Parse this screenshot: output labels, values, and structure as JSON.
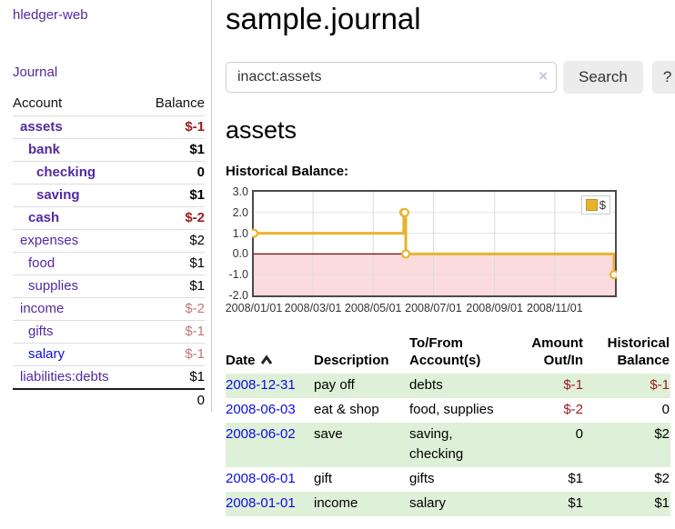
{
  "colors": {
    "purple": "#5329a0",
    "blue": "#0d0de0",
    "neg-strong": "#9d1b1f",
    "neg-soft": "#c2767c",
    "row-green": "#dff0d8",
    "btn-bg": "#ececec",
    "chart-line": "#e8b430",
    "chart-neg-fill": "#fbdbdb",
    "chart-zero": "#7e0000"
  },
  "app": {
    "brand": "hledger-web"
  },
  "sidebar": {
    "journal_link": "Journal",
    "account_header": "Account",
    "balance_header": "Balance",
    "accounts": [
      {
        "name": "assets",
        "depth": 1,
        "balance": "$-1",
        "bold": true,
        "neg": "strong"
      },
      {
        "name": "bank",
        "depth": 2,
        "balance": "$1",
        "bold": true
      },
      {
        "name": "checking",
        "depth": 3,
        "balance": "0",
        "bold": true
      },
      {
        "name": "saving",
        "depth": 3,
        "balance": "$1",
        "bold": true
      },
      {
        "name": "cash",
        "depth": 2,
        "balance": "$-2",
        "bold": true,
        "neg": "strong"
      },
      {
        "name": "expenses",
        "depth": 1,
        "balance": "$2"
      },
      {
        "name": "food",
        "depth": 2,
        "balance": "$1"
      },
      {
        "name": "supplies",
        "depth": 2,
        "balance": "$1"
      },
      {
        "name": "income",
        "depth": 1,
        "balance": "$-2",
        "neg": "soft"
      },
      {
        "name": "gifts",
        "depth": 2,
        "balance": "$-1",
        "neg": "soft"
      },
      {
        "name": "salary",
        "depth": 2,
        "balance": "$-1",
        "neg": "soft",
        "link": "blue"
      },
      {
        "name": "liabilities:debts",
        "depth": 1,
        "balance": "$1"
      }
    ],
    "total": "0"
  },
  "header": {
    "title": "sample.journal"
  },
  "search": {
    "value": "inacct:assets",
    "clear_icon": "×",
    "button_label": "Search",
    "help_label": "?"
  },
  "account_page": {
    "heading": "assets",
    "chart_label": "Historical Balance:"
  },
  "chart_data": {
    "type": "line",
    "title": "Historical Balance:",
    "step": "post",
    "ylim": [
      -2,
      3
    ],
    "yticks": [
      {
        "label": "3.0",
        "value": 3
      },
      {
        "label": "2.0",
        "value": 2
      },
      {
        "label": "1.0",
        "value": 1
      },
      {
        "label": "0.0",
        "value": 0
      },
      {
        "label": "-1.0",
        "value": -1
      },
      {
        "label": "-2.0",
        "value": -2
      }
    ],
    "xticks": [
      {
        "label": "2008/01/01",
        "xf": 0.0
      },
      {
        "label": "2008/03/01",
        "xf": 0.1639
      },
      {
        "label": "2008/05/01",
        "xf": 0.3306
      },
      {
        "label": "2008/07/01",
        "xf": 0.4973
      },
      {
        "label": "2008/09/01",
        "xf": 0.6667
      },
      {
        "label": "2008/11/01",
        "xf": 0.8333
      }
    ],
    "series": [
      {
        "name": "$",
        "points": [
          {
            "date": "2008-01-01",
            "xf": 0.0,
            "value": 1
          },
          {
            "date": "2008-06-01",
            "xf": 0.4153,
            "value": 2
          },
          {
            "date": "2008-06-02",
            "xf": 0.418,
            "value": 2
          },
          {
            "date": "2008-06-03",
            "xf": 0.4208,
            "value": 0
          },
          {
            "date": "2008-12-31",
            "xf": 0.9973,
            "value": -1
          }
        ]
      }
    ],
    "legend": {
      "label": "$",
      "position": "top-right"
    },
    "grid": true
  },
  "register": {
    "headers": {
      "date": "Date",
      "description": "Description",
      "account": "To/From Account(s)",
      "amount": "Amount Out/In",
      "balance": "Historical Balance"
    },
    "rows": [
      {
        "date": "2008-12-31",
        "description": "pay off",
        "account": "debts",
        "amount": "$-1",
        "balance": "$-1"
      },
      {
        "date": "2008-06-03",
        "description": "eat & shop",
        "account": "food, supplies",
        "amount": "$-2",
        "balance": "0"
      },
      {
        "date": "2008-06-02",
        "description": "save",
        "account": "saving, checking",
        "amount": "0",
        "balance": "$2"
      },
      {
        "date": "2008-06-01",
        "description": "gift",
        "account": "gifts",
        "amount": "$1",
        "balance": "$2"
      },
      {
        "date": "2008-01-01",
        "description": "income",
        "account": "salary",
        "amount": "$1",
        "balance": "$1"
      }
    ]
  }
}
